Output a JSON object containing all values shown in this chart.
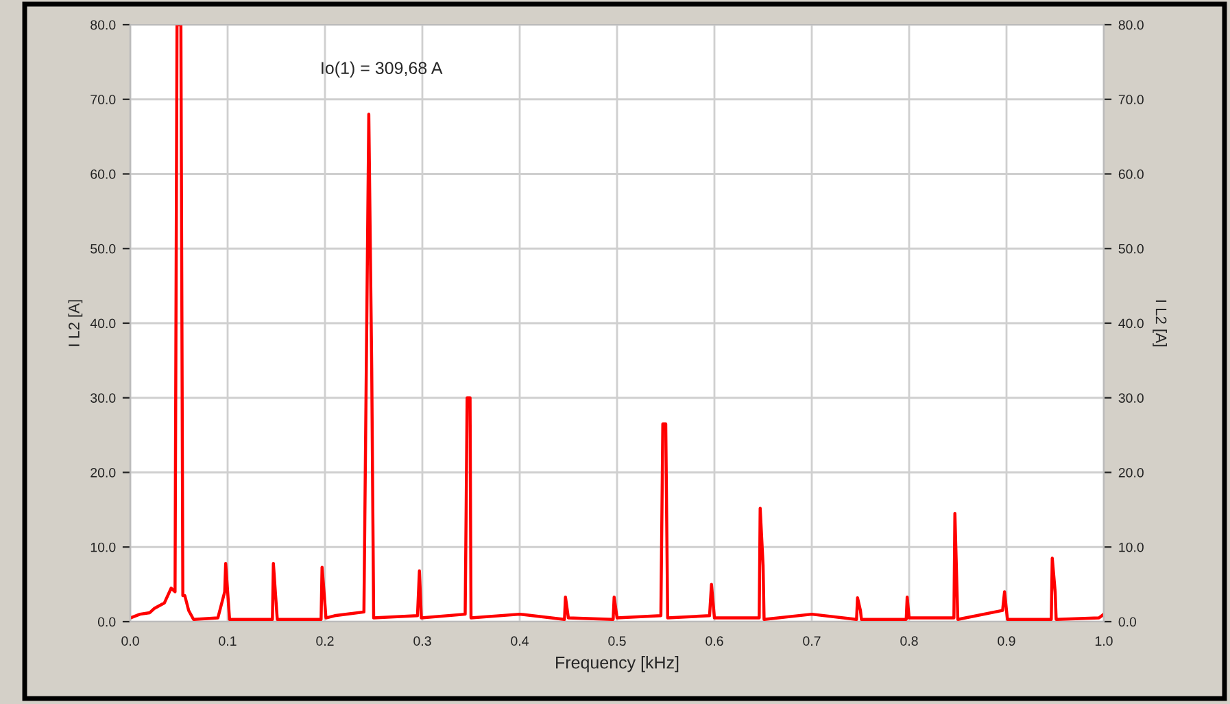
{
  "chart_data": {
    "type": "line",
    "xlabel": "Frequency [kHz]",
    "ylabel": "I L2 [A]",
    "y2label": "I L2 [A]",
    "annotations": [
      "Io(1) = 309,68 A"
    ],
    "x": [
      0.0,
      0.01,
      0.02,
      0.025,
      0.035,
      0.042,
      0.046,
      0.048,
      0.052,
      0.054,
      0.056,
      0.06,
      0.065,
      0.09,
      0.097,
      0.098,
      0.102,
      0.146,
      0.147,
      0.149,
      0.151,
      0.196,
      0.197,
      0.199,
      0.201,
      0.21,
      0.24,
      0.245,
      0.248,
      0.25,
      0.295,
      0.297,
      0.299,
      0.344,
      0.345,
      0.346,
      0.349,
      0.35,
      0.4,
      0.446,
      0.447,
      0.45,
      0.496,
      0.497,
      0.5,
      0.545,
      0.546,
      0.547,
      0.55,
      0.551,
      0.552,
      0.595,
      0.597,
      0.599,
      0.6,
      0.646,
      0.647,
      0.65,
      0.651,
      0.7,
      0.746,
      0.747,
      0.75,
      0.751,
      0.797,
      0.798,
      0.8,
      0.846,
      0.847,
      0.85,
      0.896,
      0.898,
      0.9,
      0.901,
      0.946,
      0.947,
      0.95,
      0.951,
      0.995,
      1.0
    ],
    "series": [
      {
        "color": "#ff0000",
        "values": [
          0.5,
          1.0,
          1.2,
          1.8,
          2.5,
          4.5,
          4.0,
          80,
          80,
          3.5,
          3.5,
          1.5,
          0.3,
          0.5,
          4,
          7.8,
          0.3,
          0.3,
          7.8,
          4,
          0.3,
          0.3,
          7.3,
          4,
          0.5,
          0.8,
          1.3,
          68,
          34,
          0.5,
          0.8,
          6.8,
          0.5,
          1.0,
          15,
          30,
          30,
          0.5,
          1.0,
          0.3,
          3.3,
          0.5,
          0.3,
          3.3,
          0.5,
          0.8,
          13.5,
          26.5,
          26.5,
          13.5,
          0.5,
          0.8,
          5.0,
          2.0,
          0.5,
          0.5,
          15.2,
          7.5,
          0.3,
          1.0,
          0.3,
          3.2,
          1.5,
          0.3,
          0.3,
          3.3,
          0.5,
          0.5,
          14.5,
          0.3,
          1.5,
          4,
          1.5,
          0.3,
          0.3,
          8.5,
          4,
          0.3,
          0.5,
          1.0
        ]
      }
    ],
    "xlim": [
      0.0,
      1.0
    ],
    "xticks": [
      {
        "value": 0.0,
        "label": "0.0"
      },
      {
        "value": 0.1,
        "label": "0.1"
      },
      {
        "value": 0.2,
        "label": "0.2"
      },
      {
        "value": 0.3,
        "label": "0.3"
      },
      {
        "value": 0.4,
        "label": "0.4"
      },
      {
        "value": 0.5,
        "label": "0.5"
      },
      {
        "value": 0.6,
        "label": "0.6"
      },
      {
        "value": 0.7,
        "label": "0.7"
      },
      {
        "value": 0.8,
        "label": "0.8"
      },
      {
        "value": 0.9,
        "label": "0.9"
      },
      {
        "value": 1.0,
        "label": "1.0"
      }
    ],
    "ylim": [
      0.0,
      80.0
    ],
    "yticks": [
      {
        "value": 0,
        "label": "0.0"
      },
      {
        "value": 10,
        "label": "10.0"
      },
      {
        "value": 20,
        "label": "20.0"
      },
      {
        "value": 30,
        "label": "30.0"
      },
      {
        "value": 40,
        "label": "40.0"
      },
      {
        "value": 50,
        "label": "50.0"
      },
      {
        "value": 60,
        "label": "60.0"
      },
      {
        "value": 70,
        "label": "70.0"
      },
      {
        "value": 80,
        "label": "80.0"
      }
    ],
    "y2lim": [
      0.0,
      80.0
    ],
    "y2ticks": [
      {
        "value": 0,
        "label": "0.0"
      },
      {
        "value": 10,
        "label": "10.0"
      },
      {
        "value": 20,
        "label": "20.0"
      },
      {
        "value": 30,
        "label": "30.0"
      },
      {
        "value": 40,
        "label": "40.0"
      },
      {
        "value": 50,
        "label": "50.0"
      },
      {
        "value": 60,
        "label": "60.0"
      },
      {
        "value": 70,
        "label": "70.0"
      },
      {
        "value": 80,
        "label": "80.0"
      }
    ],
    "grid": true,
    "legend": false,
    "marker": "none",
    "line_style": "solid"
  }
}
